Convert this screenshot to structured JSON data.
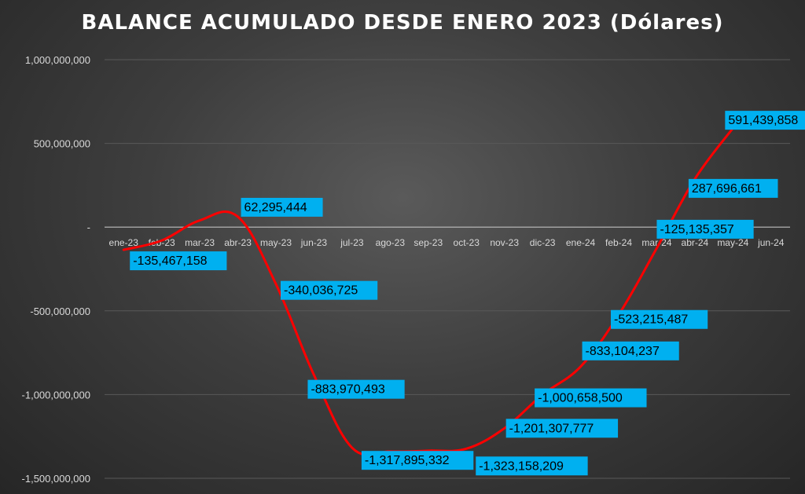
{
  "chart_data": {
    "type": "line",
    "title": "BALANCE ACUMULADO DESDE ENERO 2023 (Dólares)",
    "xlabel": "",
    "ylabel": "",
    "categories": [
      "ene-23",
      "feb-23",
      "mar-23",
      "abr-23",
      "may-23",
      "jun-23",
      "jul-23",
      "ago-23",
      "sep-23",
      "oct-23",
      "nov-23",
      "dic-23",
      "ene-24",
      "feb-24",
      "mar-24",
      "abr-24",
      "may-24",
      "jun-24"
    ],
    "series": [
      {
        "values": [
          -135467158,
          -80000000,
          40000000,
          62295444,
          -340036725,
          -883970493,
          -1317895332,
          -1340000000,
          -1335000000,
          -1323158209,
          -1201307777,
          -1000658500,
          -833104237,
          -523215487,
          -125135357,
          287696661,
          591439858,
          null
        ]
      }
    ],
    "data_labels": [
      {
        "index": 0,
        "text": "-135,467,158"
      },
      {
        "index": 3,
        "text": "62,295,444"
      },
      {
        "index": 4,
        "text": "-340,036,725"
      },
      {
        "index": 5,
        "text": "-883,970,493"
      },
      {
        "index": 6,
        "text": "-1,317,895,332"
      },
      {
        "index": 9,
        "text": "-1,323,158,209"
      },
      {
        "index": 10,
        "text": "-1,201,307,777"
      },
      {
        "index": 11,
        "text": "-1,000,658,500"
      },
      {
        "index": 12,
        "text": "-833,104,237"
      },
      {
        "index": 13,
        "text": "-523,215,487"
      },
      {
        "index": 14,
        "text": "-125,135,357"
      },
      {
        "index": 15,
        "text": "287,696,661"
      },
      {
        "index": 16,
        "text": "591,439,858"
      }
    ],
    "y_ticks": [
      {
        "value": 1000000000,
        "label": "1,000,000,000"
      },
      {
        "value": 500000000,
        "label": "500,000,000"
      },
      {
        "value": 0,
        "label": "-"
      },
      {
        "value": -500000000,
        "label": "-500,000,000"
      },
      {
        "value": -1000000000,
        "label": "-1,000,000,000"
      },
      {
        "value": -1500000000,
        "label": "-1,500,000,000"
      }
    ],
    "ylim": [
      -1500000000,
      1000000000
    ],
    "grid": true,
    "colors": {
      "line": "#ff0000",
      "label_bg": "#00b0f0",
      "label_text": "#000000",
      "axis_text": "#d9d9d9",
      "grid": "#595959",
      "zero_axis": "#bfbfbf"
    }
  }
}
